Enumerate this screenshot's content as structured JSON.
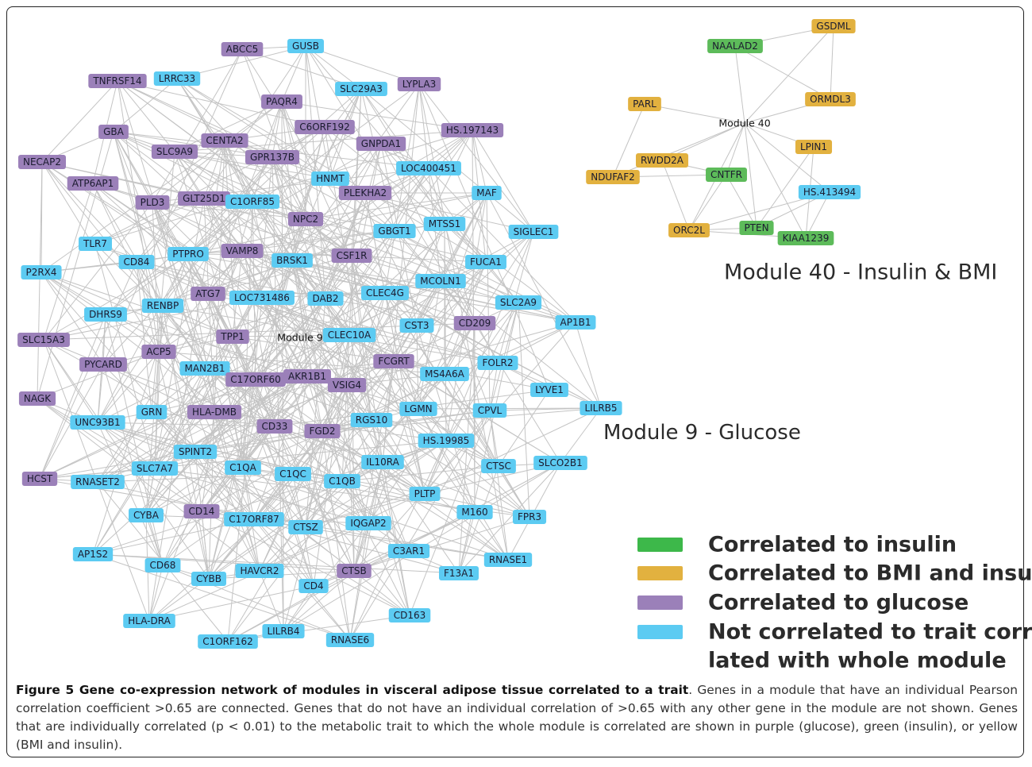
{
  "modules": [
    {
      "label": "Module 9",
      "heading": "Module 9 - Glucose",
      "nodes": [
        {
          "label": "ABCC5",
          "color": "#9b80b9"
        },
        {
          "label": "GUSB",
          "color": "#5ccbf2"
        },
        {
          "label": "TNFRSF14",
          "color": "#9b80b9"
        },
        {
          "label": "LRRC33",
          "color": "#5ccbf2"
        },
        {
          "label": "SLC29A3",
          "color": "#5ccbf2"
        },
        {
          "label": "LYPLA3",
          "color": "#9b80b9"
        },
        {
          "label": "PAQR4",
          "color": "#9b80b9"
        },
        {
          "label": "C6ORF192",
          "color": "#9b80b9"
        },
        {
          "label": "HS.197143",
          "color": "#9b80b9"
        },
        {
          "label": "GBA",
          "color": "#9b80b9"
        },
        {
          "label": "CENTA2",
          "color": "#9b80b9"
        },
        {
          "label": "GNPDA1",
          "color": "#9b80b9"
        },
        {
          "label": "SLC9A9",
          "color": "#9b80b9"
        },
        {
          "label": "GPR137B",
          "color": "#9b80b9"
        },
        {
          "label": "NECAP2",
          "color": "#9b80b9"
        },
        {
          "label": "LOC400451",
          "color": "#5ccbf2"
        },
        {
          "label": "ATP6AP1",
          "color": "#9b80b9"
        },
        {
          "label": "HNMT",
          "color": "#5ccbf2"
        },
        {
          "label": "PLD3",
          "color": "#9b80b9"
        },
        {
          "label": "GLT25D1",
          "color": "#9b80b9"
        },
        {
          "label": "C1ORF85",
          "color": "#5ccbf2"
        },
        {
          "label": "PLEKHA2",
          "color": "#9b80b9"
        },
        {
          "label": "MAF",
          "color": "#5ccbf2"
        },
        {
          "label": "NPC2",
          "color": "#9b80b9"
        },
        {
          "label": "GBGT1",
          "color": "#5ccbf2"
        },
        {
          "label": "MTSS1",
          "color": "#5ccbf2"
        },
        {
          "label": "SIGLEC1",
          "color": "#5ccbf2"
        },
        {
          "label": "TLR7",
          "color": "#5ccbf2"
        },
        {
          "label": "PTPRO",
          "color": "#5ccbf2"
        },
        {
          "label": "VAMP8",
          "color": "#9b80b9"
        },
        {
          "label": "CD84",
          "color": "#5ccbf2"
        },
        {
          "label": "BRSK1",
          "color": "#5ccbf2"
        },
        {
          "label": "CSF1R",
          "color": "#9b80b9"
        },
        {
          "label": "FUCA1",
          "color": "#5ccbf2"
        },
        {
          "label": "P2RX4",
          "color": "#5ccbf2"
        },
        {
          "label": "MCOLN1",
          "color": "#5ccbf2"
        },
        {
          "label": "ATG7",
          "color": "#9b80b9"
        },
        {
          "label": "LOC731486",
          "color": "#5ccbf2"
        },
        {
          "label": "DAB2",
          "color": "#5ccbf2"
        },
        {
          "label": "CLEC4G",
          "color": "#5ccbf2"
        },
        {
          "label": "RENBP",
          "color": "#5ccbf2"
        },
        {
          "label": "SLC2A9",
          "color": "#5ccbf2"
        },
        {
          "label": "DHRS9",
          "color": "#5ccbf2"
        },
        {
          "label": "CST3",
          "color": "#5ccbf2"
        },
        {
          "label": "CD209",
          "color": "#9b80b9"
        },
        {
          "label": "AP1B1",
          "color": "#5ccbf2"
        },
        {
          "label": "SLC15A3",
          "color": "#9b80b9"
        },
        {
          "label": "TPP1",
          "color": "#9b80b9"
        },
        {
          "label": "CLEC10A",
          "color": "#5ccbf2"
        },
        {
          "label": "ACP5",
          "color": "#9b80b9"
        },
        {
          "label": "PYCARD",
          "color": "#9b80b9"
        },
        {
          "label": "FCGRT",
          "color": "#9b80b9"
        },
        {
          "label": "FOLR2",
          "color": "#5ccbf2"
        },
        {
          "label": "MAN2B1",
          "color": "#5ccbf2"
        },
        {
          "label": "C17ORF60",
          "color": "#9b80b9"
        },
        {
          "label": "AKR1B1",
          "color": "#9b80b9"
        },
        {
          "label": "VSIG4",
          "color": "#9b80b9"
        },
        {
          "label": "MS4A6A",
          "color": "#5ccbf2"
        },
        {
          "label": "LYVE1",
          "color": "#5ccbf2"
        },
        {
          "label": "LILRB5",
          "color": "#5ccbf2"
        },
        {
          "label": "NAGK",
          "color": "#9b80b9"
        },
        {
          "label": "GRN",
          "color": "#5ccbf2"
        },
        {
          "label": "HLA-DMB",
          "color": "#9b80b9"
        },
        {
          "label": "LGMN",
          "color": "#5ccbf2"
        },
        {
          "label": "CPVL",
          "color": "#5ccbf2"
        },
        {
          "label": "UNC93B1",
          "color": "#5ccbf2"
        },
        {
          "label": "CD33",
          "color": "#9b80b9"
        },
        {
          "label": "FGD2",
          "color": "#9b80b9"
        },
        {
          "label": "RGS10",
          "color": "#5ccbf2"
        },
        {
          "label": "HS.19985",
          "color": "#5ccbf2"
        },
        {
          "label": "SPINT2",
          "color": "#5ccbf2"
        },
        {
          "label": "SLC7A7",
          "color": "#5ccbf2"
        },
        {
          "label": "C1QA",
          "color": "#5ccbf2"
        },
        {
          "label": "C1QC",
          "color": "#5ccbf2"
        },
        {
          "label": "IL10RA",
          "color": "#5ccbf2"
        },
        {
          "label": "CTSC",
          "color": "#5ccbf2"
        },
        {
          "label": "SLCO2B1",
          "color": "#5ccbf2"
        },
        {
          "label": "HCST",
          "color": "#9b80b9"
        },
        {
          "label": "RNASET2",
          "color": "#5ccbf2"
        },
        {
          "label": "C1QB",
          "color": "#5ccbf2"
        },
        {
          "label": "PLTP",
          "color": "#5ccbf2"
        },
        {
          "label": "M160",
          "color": "#5ccbf2"
        },
        {
          "label": "CYBA",
          "color": "#5ccbf2"
        },
        {
          "label": "CD14",
          "color": "#9b80b9"
        },
        {
          "label": "C17ORF87",
          "color": "#5ccbf2"
        },
        {
          "label": "FPR3",
          "color": "#5ccbf2"
        },
        {
          "label": "CTSZ",
          "color": "#5ccbf2"
        },
        {
          "label": "IQGAP2",
          "color": "#5ccbf2"
        },
        {
          "label": "AP1S2",
          "color": "#5ccbf2"
        },
        {
          "label": "C3AR1",
          "color": "#5ccbf2"
        },
        {
          "label": "RNASE1",
          "color": "#5ccbf2"
        },
        {
          "label": "CD68",
          "color": "#5ccbf2"
        },
        {
          "label": "HAVCR2",
          "color": "#5ccbf2"
        },
        {
          "label": "CYBB",
          "color": "#5ccbf2"
        },
        {
          "label": "CTSB",
          "color": "#9b80b9"
        },
        {
          "label": "F13A1",
          "color": "#5ccbf2"
        },
        {
          "label": "CD4",
          "color": "#5ccbf2"
        },
        {
          "label": "CD163",
          "color": "#5ccbf2"
        },
        {
          "label": "HLA-DRA",
          "color": "#5ccbf2"
        },
        {
          "label": "LILRB4",
          "color": "#5ccbf2"
        },
        {
          "label": "C1ORF162",
          "color": "#5ccbf2"
        },
        {
          "label": "RNASE6",
          "color": "#5ccbf2"
        }
      ]
    },
    {
      "label": "Module 40",
      "heading": "Module 40 - Insulin & BMI",
      "nodes": [
        {
          "label": "GSDML",
          "color": "#e2b13f"
        },
        {
          "label": "NAALAD2",
          "color": "#5dbb5a"
        },
        {
          "label": "PARL",
          "color": "#e2b13f"
        },
        {
          "label": "ORMDL3",
          "color": "#e2b13f"
        },
        {
          "label": "LPIN1",
          "color": "#e2b13f"
        },
        {
          "label": "RWDD2A",
          "color": "#e2b13f"
        },
        {
          "label": "CNTFR",
          "color": "#5dbb5a"
        },
        {
          "label": "NDUFAF2",
          "color": "#e2b13f"
        },
        {
          "label": "HS.413494",
          "color": "#5ccbf2"
        },
        {
          "label": "ORC2L",
          "color": "#e2b13f"
        },
        {
          "label": "PTEN",
          "color": "#5dbb5a"
        },
        {
          "label": "KIAA1239",
          "color": "#5dbb5a"
        }
      ]
    }
  ],
  "legend": [
    {
      "color": "#3db84a",
      "lines": [
        "Correlated to insulin"
      ]
    },
    {
      "color": "#e2b13f",
      "lines": [
        "Correlated to BMI and insulin"
      ]
    },
    {
      "color": "#9b80b9",
      "lines": [
        "Correlated to glucose"
      ]
    },
    {
      "color": "#5ccbf2",
      "lines": [
        "Not correlated to trait corre-",
        "lated with whole module"
      ]
    }
  ],
  "caption": {
    "title": "Figure 5 Gene co-expression network of modules in visceral adipose tissue correlated to a trait",
    "text": ". Genes in a module that have an individual Pearson correlation coefficient >0.65 are connected. Genes that do not have an individual correlation of >0.65 with any other gene in the module are not shown. Genes that are individually correlated (p < 0.01) to the metabolic trait to which the whole module is correlated are shown in purple (glucose), green (insulin), or yellow (BMI and insulin)."
  }
}
